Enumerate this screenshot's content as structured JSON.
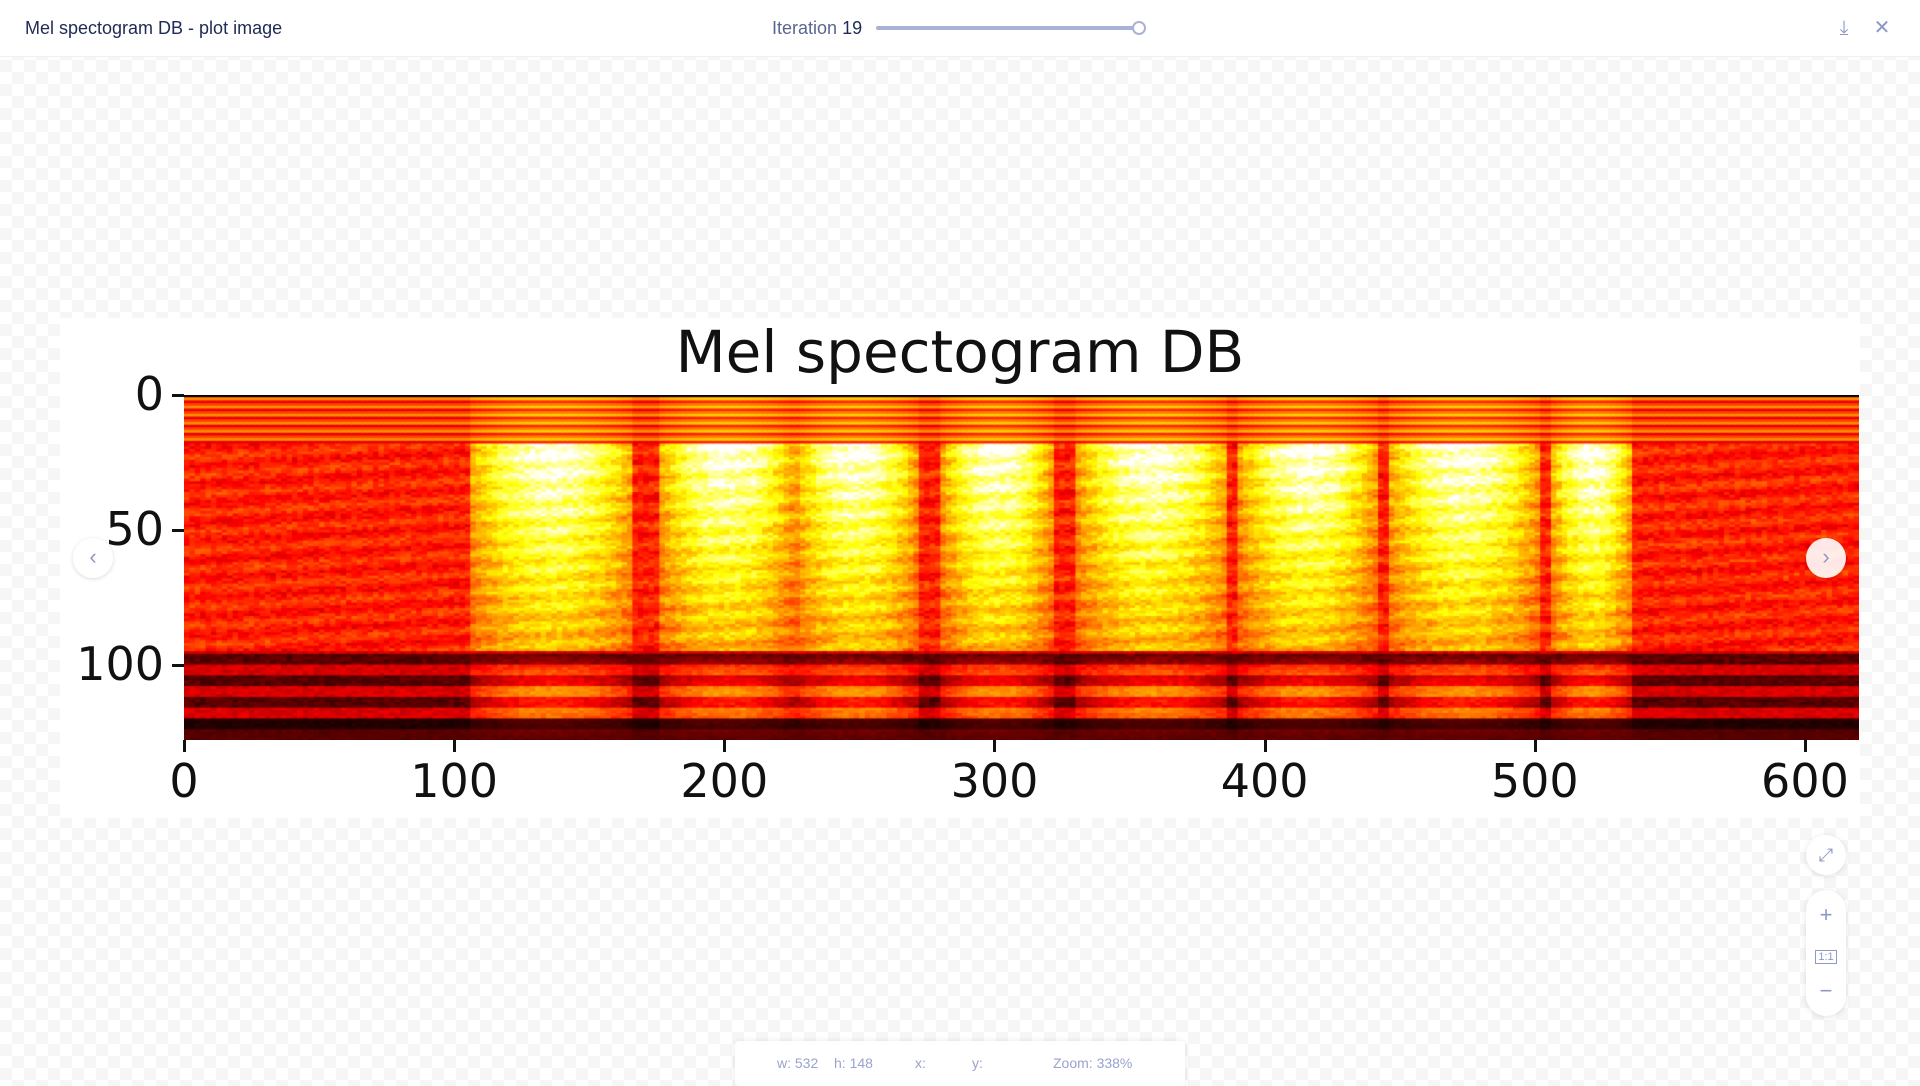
{
  "header": {
    "title": "Mel spectogram DB - plot image",
    "iteration_label": "Iteration",
    "iteration_value": "19",
    "slider_value_fraction": 1.0,
    "download_icon": "download-icon",
    "close_icon": "close-icon"
  },
  "chart_data": {
    "type": "heatmap",
    "title": "Mel spectogram DB",
    "colormap": "hot",
    "xlim": [
      0,
      620
    ],
    "ylim": [
      128,
      0
    ],
    "x_ticks": [
      "0",
      "100",
      "200",
      "300",
      "400",
      "500",
      "600"
    ],
    "y_ticks": [
      "0",
      "50",
      "100"
    ],
    "xlabel": "",
    "ylabel": ""
  },
  "status": {
    "w": "w: 532",
    "h": "h: 148",
    "x": "x:",
    "y": "y:",
    "zoom": "Zoom: 338%"
  },
  "controls": {
    "fullscreen": "fullscreen-icon",
    "zoom_in": "+",
    "actual_size": "1:1",
    "zoom_out": "−"
  },
  "nav": {
    "prev": "‹",
    "next": "›"
  }
}
